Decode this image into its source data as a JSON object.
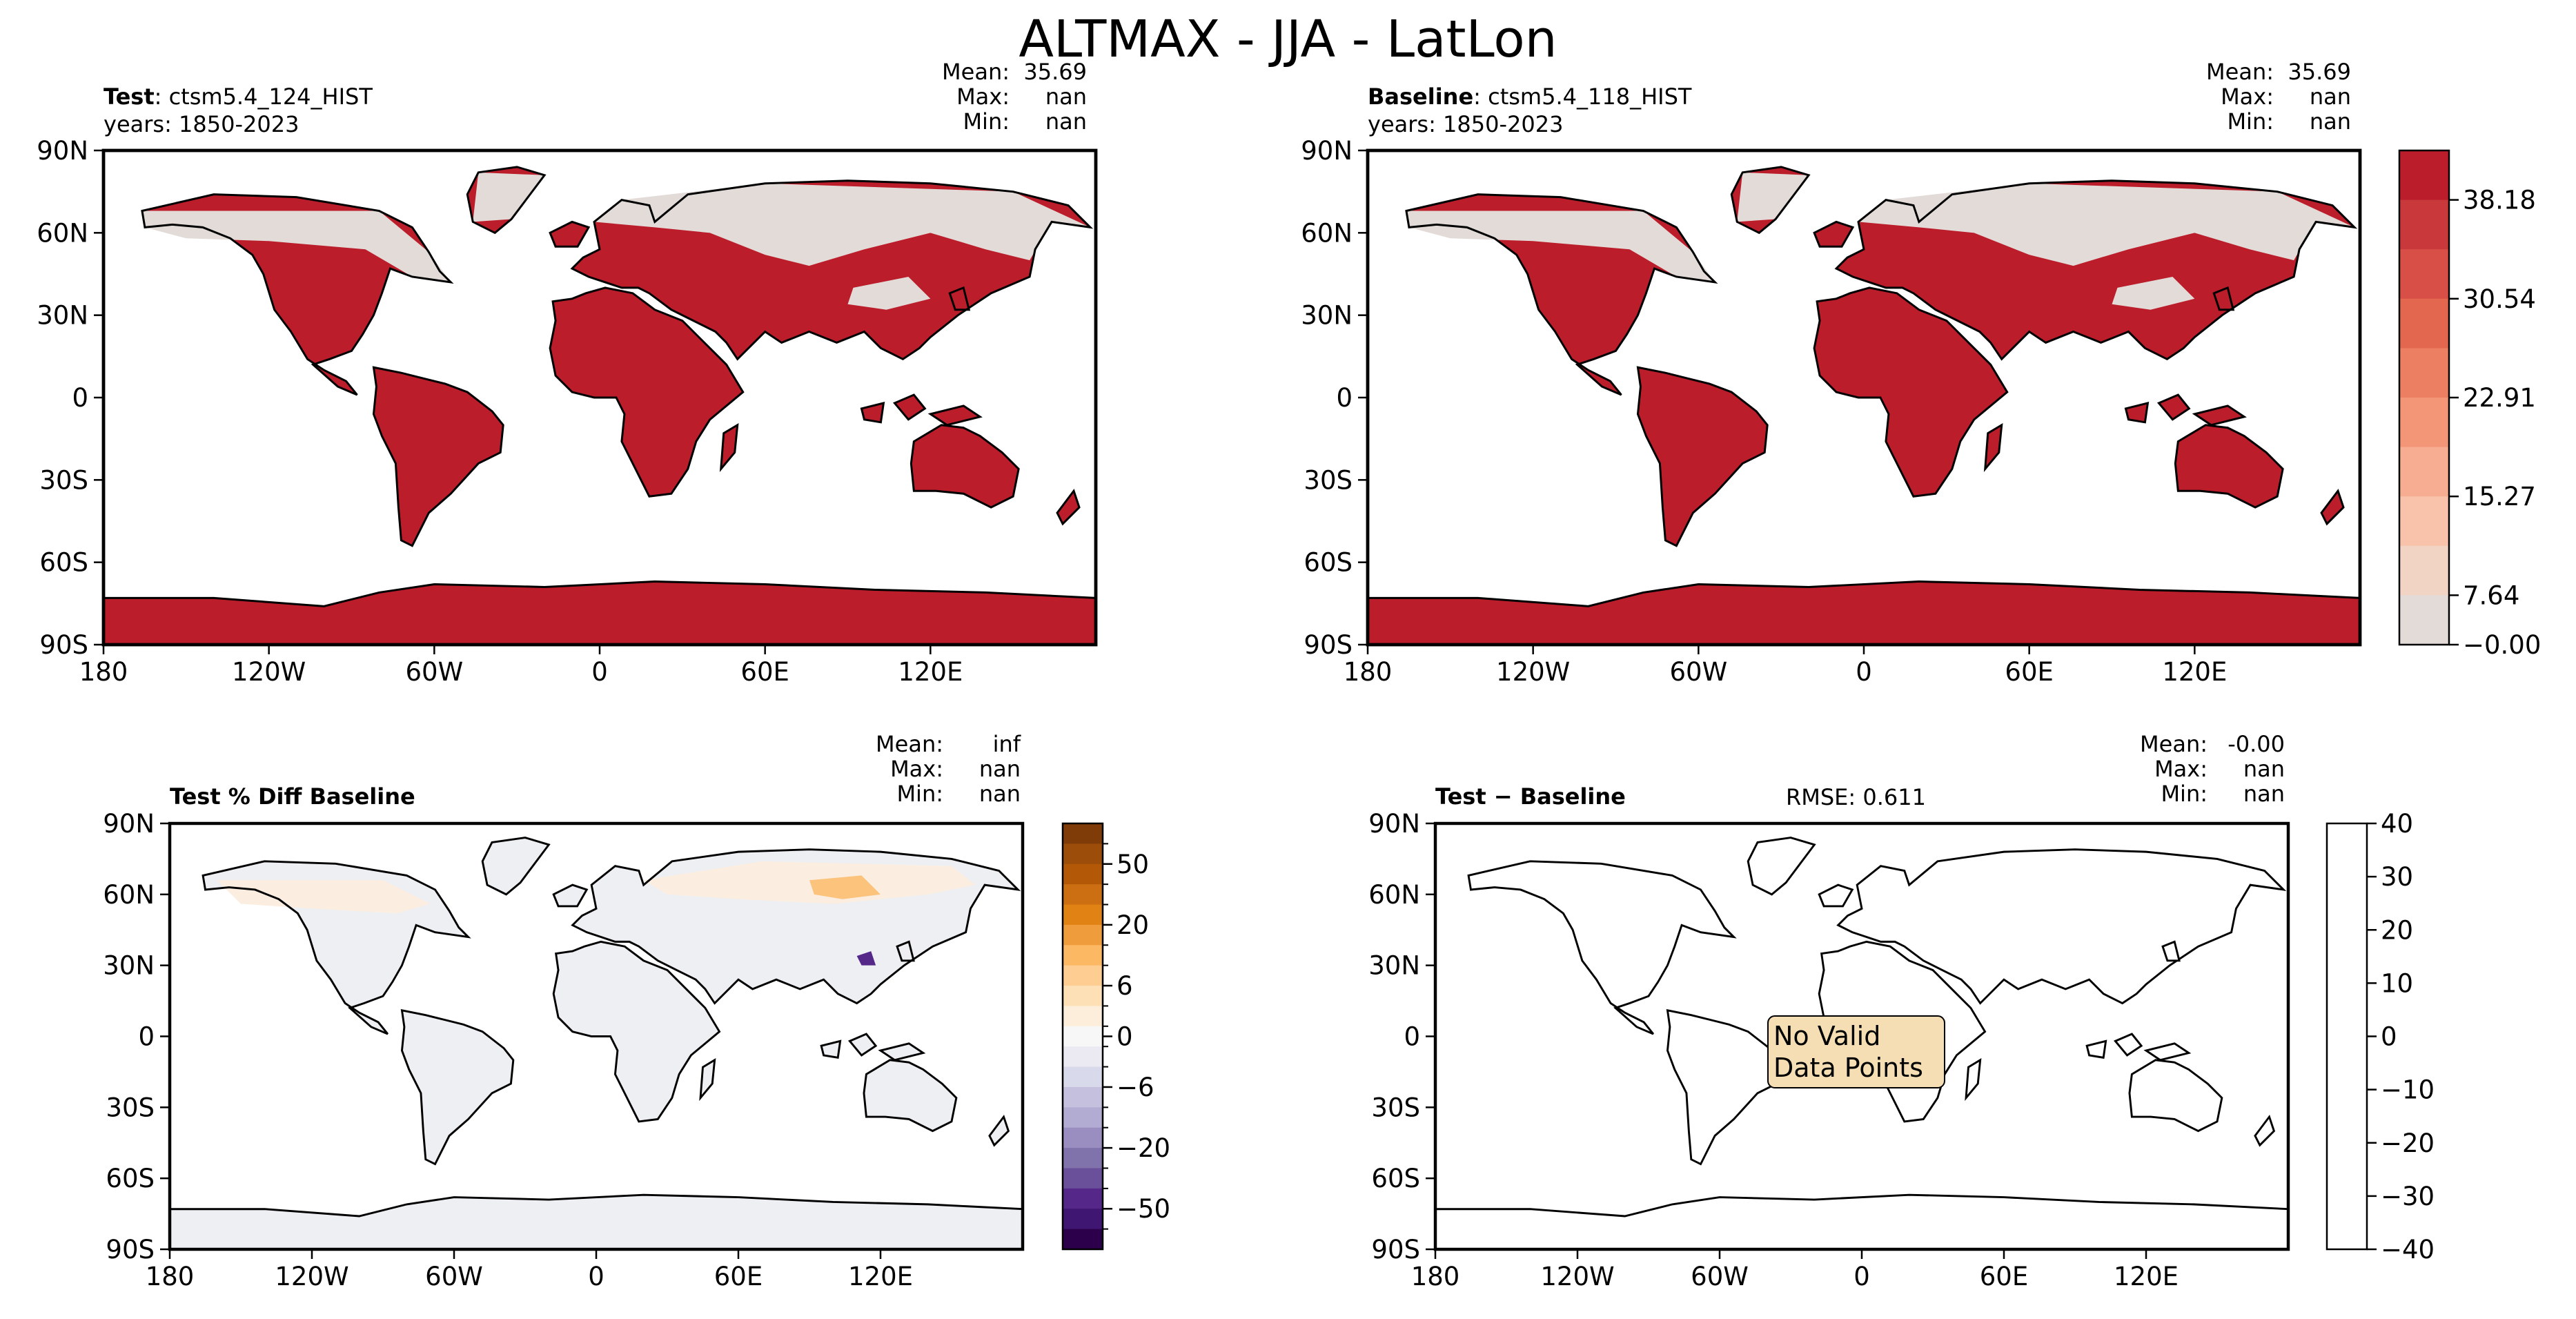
{
  "figure": {
    "title": "ALTMAX - JJA - LatLon"
  },
  "panels": [
    {
      "id": "test",
      "title_bold": "Test",
      "title_rest": ": ctsm5.4_124_HIST",
      "years": "years: 1850-2023",
      "stats": {
        "mean_label": "Mean:",
        "mean": "35.69",
        "max_label": "Max:",
        "max": "nan",
        "min_label": "Min:",
        "min": "nan"
      }
    },
    {
      "id": "baseline",
      "title_bold": "Baseline",
      "title_rest": ": ctsm5.4_118_HIST",
      "years": "years: 1850-2023",
      "stats": {
        "mean_label": "Mean:",
        "mean": "35.69",
        "max_label": "Max:",
        "max": "nan",
        "min_label": "Min:",
        "min": "nan"
      }
    },
    {
      "id": "pctdiff",
      "title_bold": "Test % Diff Baseline",
      "stats": {
        "mean_label": "Mean:",
        "mean": "inf",
        "max_label": "Max:",
        "max": "nan",
        "min_label": "Min:",
        "min": "nan"
      }
    },
    {
      "id": "diff",
      "title_bold": "Test − Baseline",
      "rmse": "RMSE: 0.611",
      "no_data": [
        "No Valid",
        "Data Points"
      ],
      "stats": {
        "mean_label": "Mean:",
        "mean": "-0.00",
        "max_label": "Max:",
        "max": "nan",
        "min_label": "Min:",
        "min": "nan"
      }
    }
  ],
  "chart_data": [
    {
      "type": "heatmap",
      "title": "Test: ctsm5.4_124_HIST",
      "projection": "PlateCarree",
      "xticks": [
        "180",
        "120W",
        "60W",
        "0",
        "60E",
        "120E"
      ],
      "yticks": [
        "90N",
        "60N",
        "30N",
        "0",
        "30S",
        "60S",
        "90S"
      ],
      "xlim": [
        -180,
        180
      ],
      "ylim": [
        -90,
        90
      ]
    },
    {
      "type": "heatmap",
      "title": "Baseline: ctsm5.4_118_HIST",
      "projection": "PlateCarree",
      "xticks": [
        "180",
        "120W",
        "60W",
        "0",
        "60E",
        "120E"
      ],
      "yticks": [
        "90N",
        "60N",
        "30N",
        "0",
        "30S",
        "60S",
        "90S"
      ],
      "xlim": [
        -180,
        180
      ],
      "ylim": [
        -90,
        90
      ],
      "colorbar": {
        "ticks": [
          "38.18",
          "30.54",
          "22.91",
          "15.27",
          "7.64",
          "−0.00"
        ],
        "colors": [
          "#bb1d2b",
          "#c9383b",
          "#d74f47",
          "#e3664f",
          "#ec7e62",
          "#f29677",
          "#f6ad91",
          "#f8c2ab",
          "#f2d4c5",
          "#e2dbd8"
        ]
      }
    },
    {
      "type": "heatmap",
      "title": "Test % Diff Baseline",
      "projection": "PlateCarree",
      "xticks": [
        "180",
        "120W",
        "60W",
        "0",
        "60E",
        "120E"
      ],
      "yticks": [
        "90N",
        "60N",
        "30N",
        "0",
        "30S",
        "60S",
        "90S"
      ],
      "xlim": [
        -180,
        180
      ],
      "ylim": [
        -90,
        90
      ],
      "colorbar": {
        "ticks": [
          "50",
          "20",
          "6",
          "0",
          "−6",
          "−20",
          "−50"
        ],
        "colors": [
          "#7f3b08",
          "#9c4d0a",
          "#b35806",
          "#cc6e12",
          "#e08214",
          "#ef9c3c",
          "#fdb863",
          "#fdcd92",
          "#fee0b6",
          "#fdeedc",
          "#f7f7f7",
          "#ebe9f2",
          "#d8daeb",
          "#c5c0de",
          "#b2abd2",
          "#9a8ec1",
          "#8073ac",
          "#6a4f9a",
          "#542788",
          "#3f1671",
          "#2d004b"
        ]
      }
    },
    {
      "type": "heatmap",
      "title": "Test − Baseline",
      "projection": "PlateCarree",
      "xticks": [
        "180",
        "120W",
        "60W",
        "0",
        "60E",
        "120E"
      ],
      "yticks": [
        "90N",
        "60N",
        "30N",
        "0",
        "30S",
        "60S",
        "90S"
      ],
      "xlim": [
        -180,
        180
      ],
      "ylim": [
        -90,
        90
      ],
      "colorbar": {
        "ticks": [
          "40",
          "30",
          "20",
          "10",
          "0",
          "−10",
          "−20",
          "−30",
          "−40"
        ],
        "colors": [
          "#ffffff"
        ]
      }
    }
  ]
}
